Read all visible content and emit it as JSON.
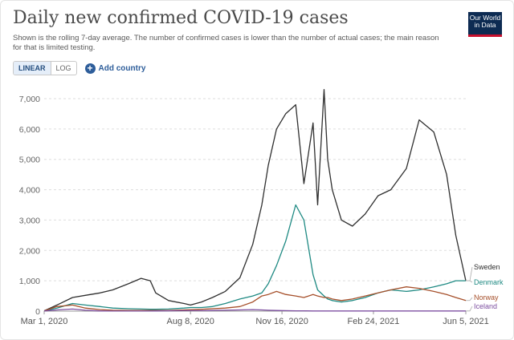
{
  "header": {
    "title": "Daily new confirmed COVID-19 cases",
    "subtitle": "Shown is the rolling 7-day average. The number of confirmed cases is lower than the number of actual cases; the main reason for that is limited testing.",
    "logo": "Our World in Data"
  },
  "controls": {
    "linear_label": "LINEAR",
    "log_label": "LOG",
    "add_country_label": "Add country"
  },
  "colors": {
    "sweden": "#2f2f2f",
    "denmark": "#1f8a83",
    "norway": "#a6502b",
    "iceland": "#7d4fa0",
    "grid": "#dddddd"
  },
  "chart_data": {
    "type": "line",
    "title": "Daily new confirmed COVID-19 cases",
    "xlabel": "",
    "ylabel": "",
    "scale": "linear",
    "ylim": [
      0,
      7000
    ],
    "grid": true,
    "yticks": [
      "0",
      "1,000",
      "2,000",
      "3,000",
      "4,000",
      "5,000",
      "6,000",
      "7,000"
    ],
    "xticks": [
      "Mar 1, 2020",
      "Aug 8, 2020",
      "Nov 16, 2020",
      "Feb 24, 2021",
      "Jun 5, 2021"
    ],
    "x": [
      "2020-03-01",
      "2020-03-15",
      "2020-04-01",
      "2020-04-15",
      "2020-05-01",
      "2020-05-15",
      "2020-06-01",
      "2020-06-15",
      "2020-06-25",
      "2020-07-01",
      "2020-07-15",
      "2020-08-01",
      "2020-08-08",
      "2020-08-20",
      "2020-09-01",
      "2020-09-15",
      "2020-10-01",
      "2020-10-15",
      "2020-10-25",
      "2020-11-01",
      "2020-11-10",
      "2020-11-20",
      "2020-12-01",
      "2020-12-10",
      "2020-12-20",
      "2020-12-25",
      "2021-01-01",
      "2021-01-05",
      "2021-01-10",
      "2021-01-20",
      "2021-02-01",
      "2021-02-15",
      "2021-03-01",
      "2021-03-15",
      "2021-04-01",
      "2021-04-15",
      "2021-05-01",
      "2021-05-15",
      "2021-05-25",
      "2021-06-05"
    ],
    "series": [
      {
        "name": "Sweden",
        "values": [
          10,
          200,
          450,
          520,
          600,
          700,
          900,
          1080,
          1000,
          600,
          350,
          250,
          200,
          300,
          450,
          650,
          1100,
          2200,
          3500,
          4800,
          6000,
          6500,
          6800,
          4200,
          6200,
          3500,
          7300,
          5000,
          4000,
          3000,
          2800,
          3200,
          3800,
          4000,
          4700,
          6300,
          5900,
          4500,
          2500,
          1000
        ]
      },
      {
        "name": "Denmark",
        "values": [
          10,
          100,
          250,
          200,
          150,
          100,
          80,
          70,
          60,
          60,
          70,
          100,
          120,
          120,
          150,
          250,
          400,
          500,
          600,
          900,
          1500,
          2300,
          3500,
          3000,
          1200,
          700,
          500,
          400,
          350,
          300,
          350,
          450,
          600,
          700,
          650,
          700,
          800,
          900,
          1000,
          1000
        ]
      },
      {
        "name": "Norway",
        "values": [
          10,
          150,
          200,
          100,
          50,
          30,
          20,
          20,
          20,
          20,
          20,
          40,
          50,
          60,
          80,
          100,
          150,
          300,
          500,
          550,
          650,
          550,
          500,
          450,
          550,
          500,
          450,
          450,
          400,
          350,
          400,
          500,
          600,
          700,
          800,
          750,
          650,
          550,
          450,
          350
        ]
      },
      {
        "name": "Iceland",
        "values": [
          5,
          40,
          70,
          30,
          5,
          2,
          2,
          2,
          2,
          5,
          10,
          15,
          15,
          15,
          20,
          30,
          40,
          50,
          40,
          30,
          20,
          15,
          10,
          10,
          5,
          5,
          5,
          5,
          5,
          5,
          5,
          5,
          5,
          5,
          5,
          5,
          5,
          5,
          5,
          5
        ]
      }
    ]
  }
}
